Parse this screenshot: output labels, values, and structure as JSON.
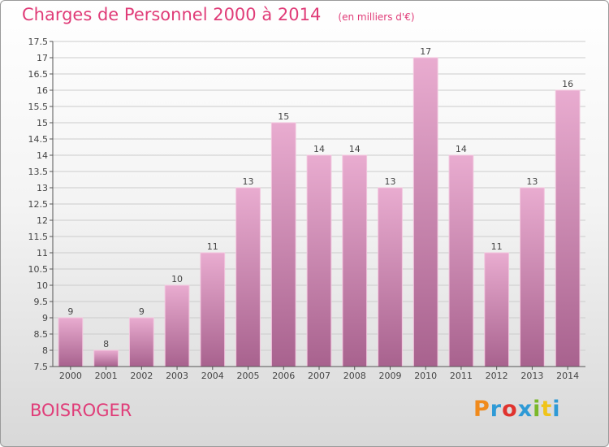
{
  "header": {
    "title": "Charges de Personnel 2000 à 2014",
    "subtitle": "(en milliers d'€)"
  },
  "footer": {
    "town": "BOISROGER",
    "logo": "Proxiti",
    "logo_colors": [
      "#f08a1c",
      "#2e9ad6",
      "#e0332e",
      "#2e9ad6",
      "#7ab82a",
      "#f0c419",
      "#2e9ad6"
    ]
  },
  "colors": {
    "accent": "#e03c78",
    "bar_top": "#e9acd0",
    "bar_bottom": "#a8628e",
    "grid": "#cccccc"
  },
  "chart_data": {
    "type": "bar",
    "categories": [
      "2000",
      "2001",
      "2002",
      "2003",
      "2004",
      "2005",
      "2006",
      "2007",
      "2008",
      "2009",
      "2010",
      "2011",
      "2012",
      "2013",
      "2014"
    ],
    "values": [
      9,
      8,
      9,
      10,
      11,
      13,
      15,
      14,
      14,
      13,
      17,
      14,
      11,
      13,
      16
    ],
    "ylim": [
      7.5,
      17.5
    ],
    "yticks": [
      "7.5",
      "8",
      "8.5",
      "9",
      "9.5",
      "10",
      "10.5",
      "11",
      "11.5",
      "12",
      "12.5",
      "13",
      "13.5",
      "14",
      "14.5",
      "15",
      "15.5",
      "16",
      "16.5",
      "17",
      "17.5"
    ],
    "grid": true,
    "legend": "none"
  }
}
